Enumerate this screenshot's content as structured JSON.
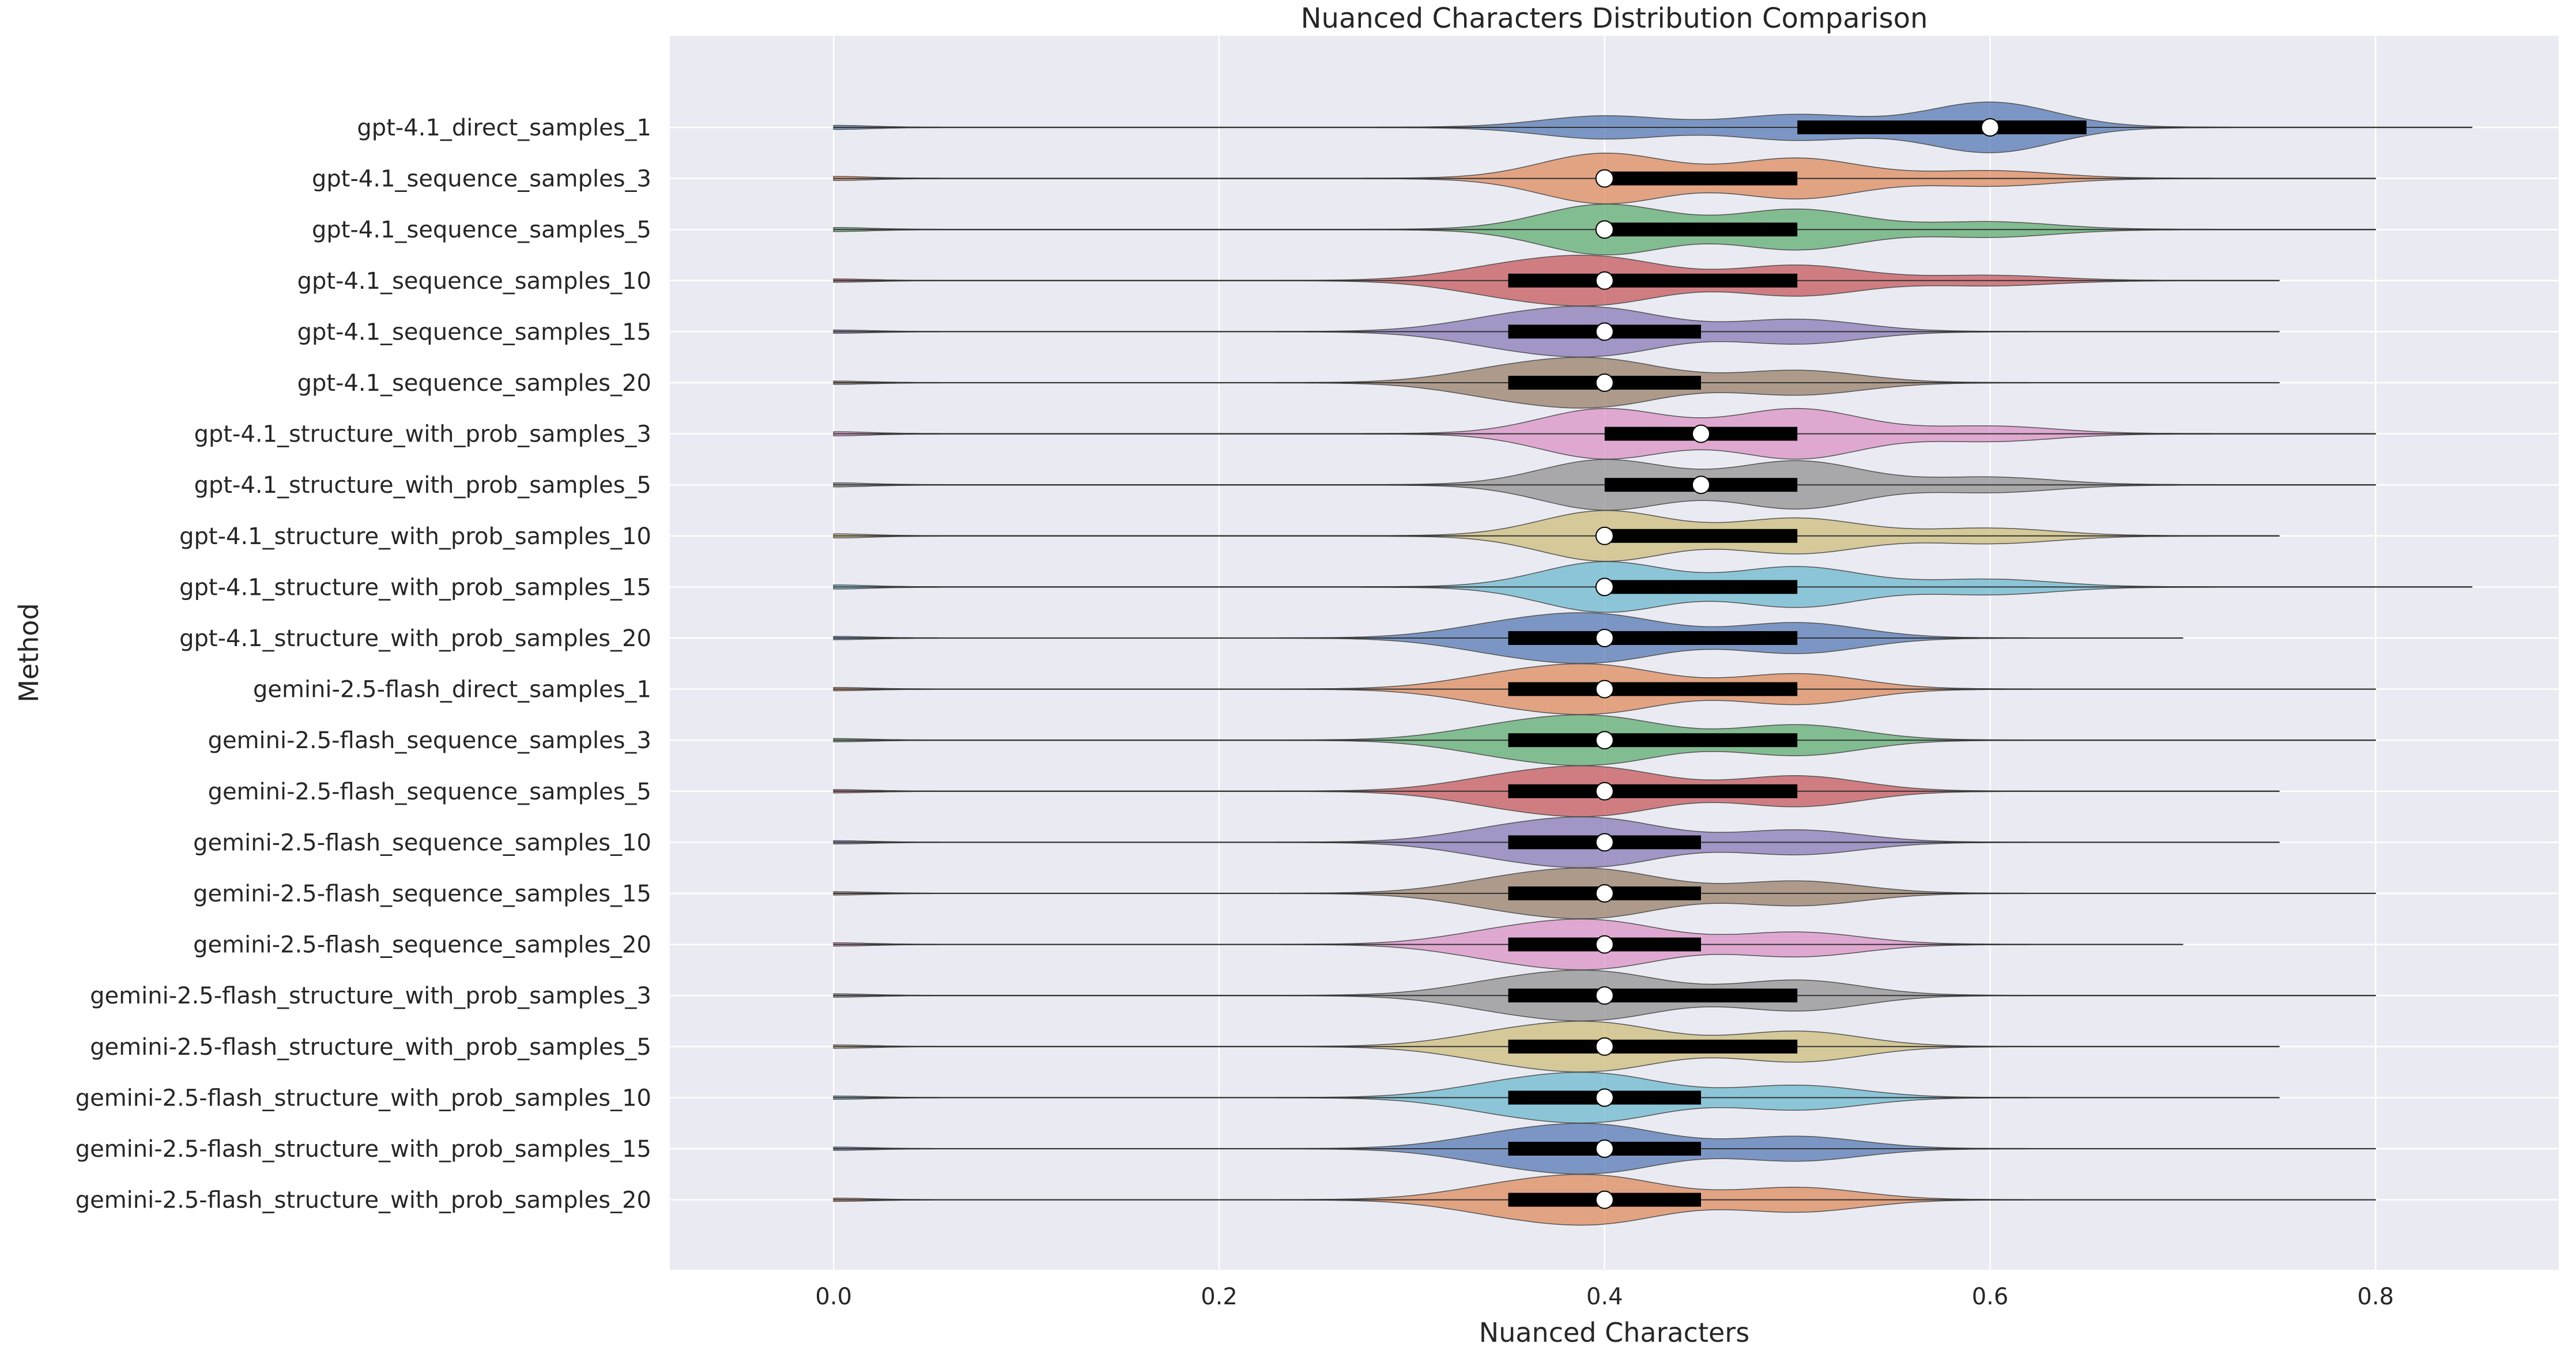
{
  "chart_data": {
    "type": "violin",
    "title": "Nuanced Characters Distribution Comparison",
    "xlabel": "Nuanced Characters",
    "ylabel": "Method",
    "xlim": [
      -0.085,
      0.895
    ],
    "xticks": [
      "0.0",
      "0.2",
      "0.4",
      "0.6",
      "0.8"
    ],
    "xtick_values": [
      0.0,
      0.2,
      0.4,
      0.6,
      0.8
    ],
    "grid": true,
    "background": "#eaeaf2",
    "colors": [
      "#4c72b0",
      "#dd8452",
      "#55a868",
      "#c44e52",
      "#8172b3",
      "#937860",
      "#da8bc3",
      "#8c8c8c",
      "#ccb974",
      "#64b5cd"
    ],
    "series": [
      {
        "name": "gpt-4.1_direct_samples_1",
        "min": 0.0,
        "q1": 0.5,
        "median": 0.6,
        "q3": 0.65,
        "max": 0.85,
        "modes": [
          [
            0.4,
            0.45
          ],
          [
            0.5,
            0.5
          ],
          [
            0.6,
            1.0
          ]
        ]
      },
      {
        "name": "gpt-4.1_sequence_samples_3",
        "min": 0.0,
        "q1": 0.4,
        "median": 0.4,
        "q3": 0.5,
        "max": 0.8,
        "modes": [
          [
            0.4,
            1.0
          ],
          [
            0.5,
            0.8
          ],
          [
            0.6,
            0.3
          ]
        ]
      },
      {
        "name": "gpt-4.1_sequence_samples_5",
        "min": 0.0,
        "q1": 0.4,
        "median": 0.4,
        "q3": 0.5,
        "max": 0.8,
        "modes": [
          [
            0.4,
            1.0
          ],
          [
            0.5,
            0.8
          ],
          [
            0.6,
            0.3
          ]
        ]
      },
      {
        "name": "gpt-4.1_sequence_samples_10",
        "min": 0.0,
        "q1": 0.35,
        "median": 0.4,
        "q3": 0.5,
        "max": 0.75,
        "modes": [
          [
            0.35,
            0.6
          ],
          [
            0.4,
            1.0
          ],
          [
            0.5,
            0.75
          ],
          [
            0.6,
            0.25
          ]
        ]
      },
      {
        "name": "gpt-4.1_sequence_samples_15",
        "min": 0.0,
        "q1": 0.35,
        "median": 0.4,
        "q3": 0.45,
        "max": 0.75,
        "modes": [
          [
            0.35,
            0.6
          ],
          [
            0.4,
            1.0
          ],
          [
            0.5,
            0.6
          ]
        ]
      },
      {
        "name": "gpt-4.1_sequence_samples_20",
        "min": 0.0,
        "q1": 0.35,
        "median": 0.4,
        "q3": 0.45,
        "max": 0.75,
        "modes": [
          [
            0.35,
            0.6
          ],
          [
            0.4,
            1.0
          ],
          [
            0.5,
            0.6
          ]
        ]
      },
      {
        "name": "gpt-4.1_structure_with_prob_samples_3",
        "min": 0.0,
        "q1": 0.4,
        "median": 0.45,
        "q3": 0.5,
        "max": 0.8,
        "modes": [
          [
            0.4,
            1.0
          ],
          [
            0.5,
            1.0
          ],
          [
            0.6,
            0.3
          ]
        ]
      },
      {
        "name": "gpt-4.1_structure_with_prob_samples_5",
        "min": 0.0,
        "q1": 0.4,
        "median": 0.45,
        "q3": 0.5,
        "max": 0.8,
        "modes": [
          [
            0.4,
            1.0
          ],
          [
            0.5,
            0.95
          ],
          [
            0.6,
            0.3
          ]
        ]
      },
      {
        "name": "gpt-4.1_structure_with_prob_samples_10",
        "min": 0.0,
        "q1": 0.4,
        "median": 0.4,
        "q3": 0.5,
        "max": 0.75,
        "modes": [
          [
            0.4,
            1.0
          ],
          [
            0.5,
            0.7
          ],
          [
            0.6,
            0.3
          ]
        ]
      },
      {
        "name": "gpt-4.1_structure_with_prob_samples_15",
        "min": 0.0,
        "q1": 0.4,
        "median": 0.4,
        "q3": 0.5,
        "max": 0.85,
        "modes": [
          [
            0.4,
            1.0
          ],
          [
            0.5,
            0.8
          ],
          [
            0.6,
            0.3
          ]
        ]
      },
      {
        "name": "gpt-4.1_structure_with_prob_samples_20",
        "min": 0.0,
        "q1": 0.35,
        "median": 0.4,
        "q3": 0.5,
        "max": 0.7,
        "modes": [
          [
            0.35,
            0.6
          ],
          [
            0.4,
            1.0
          ],
          [
            0.5,
            0.75
          ]
        ]
      },
      {
        "name": "gemini-2.5-flash_direct_samples_1",
        "min": 0.0,
        "q1": 0.35,
        "median": 0.4,
        "q3": 0.5,
        "max": 0.8,
        "modes": [
          [
            0.35,
            0.6
          ],
          [
            0.4,
            1.0
          ],
          [
            0.5,
            0.75
          ]
        ]
      },
      {
        "name": "gemini-2.5-flash_sequence_samples_3",
        "min": 0.0,
        "q1": 0.35,
        "median": 0.4,
        "q3": 0.5,
        "max": 0.8,
        "modes": [
          [
            0.35,
            0.6
          ],
          [
            0.4,
            1.0
          ],
          [
            0.5,
            0.75
          ]
        ]
      },
      {
        "name": "gemini-2.5-flash_sequence_samples_5",
        "min": 0.0,
        "q1": 0.35,
        "median": 0.4,
        "q3": 0.5,
        "max": 0.75,
        "modes": [
          [
            0.35,
            0.6
          ],
          [
            0.4,
            1.0
          ],
          [
            0.5,
            0.75
          ]
        ]
      },
      {
        "name": "gemini-2.5-flash_sequence_samples_10",
        "min": 0.0,
        "q1": 0.35,
        "median": 0.4,
        "q3": 0.45,
        "max": 0.75,
        "modes": [
          [
            0.35,
            0.6
          ],
          [
            0.4,
            1.0
          ],
          [
            0.5,
            0.6
          ]
        ]
      },
      {
        "name": "gemini-2.5-flash_sequence_samples_15",
        "min": 0.0,
        "q1": 0.35,
        "median": 0.4,
        "q3": 0.45,
        "max": 0.8,
        "modes": [
          [
            0.35,
            0.6
          ],
          [
            0.4,
            1.0
          ],
          [
            0.5,
            0.6
          ]
        ]
      },
      {
        "name": "gemini-2.5-flash_sequence_samples_20",
        "min": 0.0,
        "q1": 0.35,
        "median": 0.4,
        "q3": 0.45,
        "max": 0.7,
        "modes": [
          [
            0.35,
            0.6
          ],
          [
            0.4,
            1.0
          ],
          [
            0.5,
            0.6
          ]
        ]
      },
      {
        "name": "gemini-2.5-flash_structure_with_prob_samples_3",
        "min": 0.0,
        "q1": 0.35,
        "median": 0.4,
        "q3": 0.5,
        "max": 0.8,
        "modes": [
          [
            0.35,
            0.6
          ],
          [
            0.4,
            1.0
          ],
          [
            0.5,
            0.75
          ]
        ]
      },
      {
        "name": "gemini-2.5-flash_structure_with_prob_samples_5",
        "min": 0.0,
        "q1": 0.35,
        "median": 0.4,
        "q3": 0.5,
        "max": 0.75,
        "modes": [
          [
            0.35,
            0.6
          ],
          [
            0.4,
            1.0
          ],
          [
            0.5,
            0.75
          ]
        ]
      },
      {
        "name": "gemini-2.5-flash_structure_with_prob_samples_10",
        "min": 0.0,
        "q1": 0.35,
        "median": 0.4,
        "q3": 0.45,
        "max": 0.75,
        "modes": [
          [
            0.35,
            0.6
          ],
          [
            0.4,
            1.0
          ],
          [
            0.5,
            0.6
          ]
        ]
      },
      {
        "name": "gemini-2.5-flash_structure_with_prob_samples_15",
        "min": 0.0,
        "q1": 0.35,
        "median": 0.4,
        "q3": 0.45,
        "max": 0.8,
        "modes": [
          [
            0.35,
            0.6
          ],
          [
            0.4,
            1.0
          ],
          [
            0.5,
            0.6
          ]
        ]
      },
      {
        "name": "gemini-2.5-flash_structure_with_prob_samples_20",
        "min": 0.0,
        "q1": 0.35,
        "median": 0.4,
        "q3": 0.45,
        "max": 0.8,
        "modes": [
          [
            0.35,
            0.6
          ],
          [
            0.4,
            1.0
          ],
          [
            0.5,
            0.6
          ]
        ]
      }
    ]
  }
}
